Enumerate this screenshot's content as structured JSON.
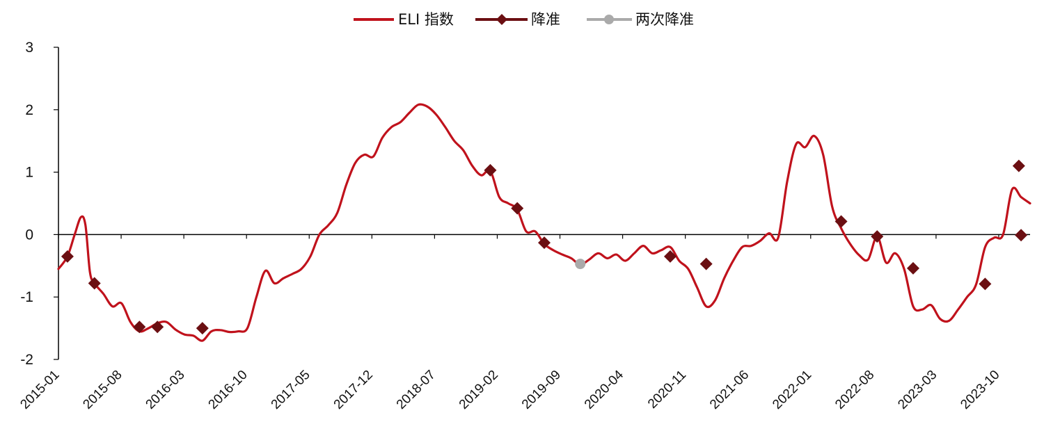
{
  "chart_data": {
    "type": "line",
    "title": "",
    "xlabel": "",
    "ylabel": "",
    "ylim": [
      -2,
      3
    ],
    "yticks": [
      "3",
      "2",
      "1",
      "0",
      "-1",
      "-2"
    ],
    "x_ticks": [
      "2015-01",
      "2015-08",
      "2016-03",
      "2016-10",
      "2017-05",
      "2017-12",
      "2018-07",
      "2019-02",
      "2019-09",
      "2020-04",
      "2020-11",
      "2021-06",
      "2022-01",
      "2022-08",
      "2023-03",
      "2023-10"
    ],
    "x_range": [
      0,
      108
    ],
    "grid": false,
    "zero_line": true,
    "legend_position": "top-center",
    "series": [
      {
        "name": "ELI 指数",
        "color": "#c0121c",
        "type": "line",
        "points": [
          [
            0,
            -0.55
          ],
          [
            1,
            -0.35
          ],
          [
            1.8,
            0.0
          ],
          [
            2.5,
            0.28
          ],
          [
            3,
            0.15
          ],
          [
            3.5,
            -0.6
          ],
          [
            4,
            -0.78
          ],
          [
            5,
            -0.95
          ],
          [
            6,
            -1.15
          ],
          [
            7,
            -1.1
          ],
          [
            8,
            -1.4
          ],
          [
            9,
            -1.55
          ],
          [
            10,
            -1.5
          ],
          [
            11,
            -1.42
          ],
          [
            12,
            -1.4
          ],
          [
            13,
            -1.52
          ],
          [
            14,
            -1.6
          ],
          [
            15,
            -1.62
          ],
          [
            16,
            -1.7
          ],
          [
            17,
            -1.55
          ],
          [
            18,
            -1.53
          ],
          [
            19,
            -1.56
          ],
          [
            20,
            -1.55
          ],
          [
            21,
            -1.5
          ],
          [
            22,
            -1.0
          ],
          [
            23,
            -0.58
          ],
          [
            24,
            -0.78
          ],
          [
            25,
            -0.7
          ],
          [
            26,
            -0.63
          ],
          [
            27,
            -0.55
          ],
          [
            28,
            -0.35
          ],
          [
            29,
            0.0
          ],
          [
            30,
            0.15
          ],
          [
            31,
            0.35
          ],
          [
            32,
            0.8
          ],
          [
            33,
            1.15
          ],
          [
            34,
            1.28
          ],
          [
            35,
            1.25
          ],
          [
            36,
            1.55
          ],
          [
            37,
            1.72
          ],
          [
            38,
            1.8
          ],
          [
            39,
            1.95
          ],
          [
            40,
            2.08
          ],
          [
            41,
            2.05
          ],
          [
            42,
            1.92
          ],
          [
            43,
            1.72
          ],
          [
            44,
            1.5
          ],
          [
            45,
            1.35
          ],
          [
            46,
            1.1
          ],
          [
            47,
            0.95
          ],
          [
            48,
            1.02
          ],
          [
            49,
            0.6
          ],
          [
            50,
            0.5
          ],
          [
            51,
            0.4
          ],
          [
            52,
            0.05
          ],
          [
            53,
            0.05
          ],
          [
            54,
            -0.15
          ],
          [
            55,
            -0.25
          ],
          [
            56,
            -0.32
          ],
          [
            57,
            -0.38
          ],
          [
            58,
            -0.48
          ],
          [
            59,
            -0.4
          ],
          [
            60,
            -0.3
          ],
          [
            61,
            -0.38
          ],
          [
            62,
            -0.32
          ],
          [
            63,
            -0.42
          ],
          [
            64,
            -0.3
          ],
          [
            65,
            -0.18
          ],
          [
            66,
            -0.3
          ],
          [
            67,
            -0.25
          ],
          [
            68,
            -0.2
          ],
          [
            69,
            -0.42
          ],
          [
            70,
            -0.55
          ],
          [
            71,
            -0.85
          ],
          [
            72,
            -1.15
          ],
          [
            73,
            -1.05
          ],
          [
            74,
            -0.7
          ],
          [
            75,
            -0.42
          ],
          [
            76,
            -0.2
          ],
          [
            77,
            -0.18
          ],
          [
            78,
            -0.1
          ],
          [
            79,
            0.02
          ],
          [
            80,
            -0.05
          ],
          [
            81,
            0.85
          ],
          [
            82,
            1.45
          ],
          [
            83,
            1.4
          ],
          [
            84,
            1.58
          ],
          [
            85,
            1.28
          ],
          [
            86,
            0.45
          ],
          [
            87,
            0.1
          ],
          [
            88,
            -0.15
          ],
          [
            89,
            -0.33
          ],
          [
            90,
            -0.4
          ],
          [
            91,
            -0.03
          ],
          [
            92,
            -0.45
          ],
          [
            93,
            -0.3
          ],
          [
            94,
            -0.55
          ],
          [
            95,
            -1.15
          ],
          [
            96,
            -1.2
          ],
          [
            97,
            -1.13
          ],
          [
            98,
            -1.35
          ],
          [
            99,
            -1.38
          ],
          [
            100,
            -1.2
          ],
          [
            101,
            -1.0
          ],
          [
            102,
            -0.8
          ],
          [
            103,
            -0.2
          ],
          [
            104,
            -0.05
          ],
          [
            105,
            0.0
          ],
          [
            106,
            0.72
          ],
          [
            107,
            0.6
          ],
          [
            108,
            0.5
          ]
        ]
      },
      {
        "name": "降准",
        "color": "#6b0f12",
        "type": "marker",
        "marker": "diamond",
        "points": [
          [
            1,
            -0.35
          ],
          [
            4,
            -0.78
          ],
          [
            9,
            -1.48
          ],
          [
            11,
            -1.48
          ],
          [
            16,
            -1.5
          ],
          [
            48,
            1.03
          ],
          [
            51,
            0.42
          ],
          [
            54,
            -0.13
          ],
          [
            68,
            -0.35
          ],
          [
            72,
            -0.47
          ],
          [
            87,
            0.21
          ],
          [
            91,
            -0.03
          ],
          [
            95,
            -0.54
          ],
          [
            103,
            -0.79
          ],
          [
            107,
            -0.01
          ],
          [
            113,
            1.1
          ]
        ]
      },
      {
        "name": "两次降准",
        "color": "#aaaaaa",
        "type": "marker",
        "marker": "circle",
        "points": [
          [
            58,
            -0.47
          ]
        ]
      }
    ]
  }
}
